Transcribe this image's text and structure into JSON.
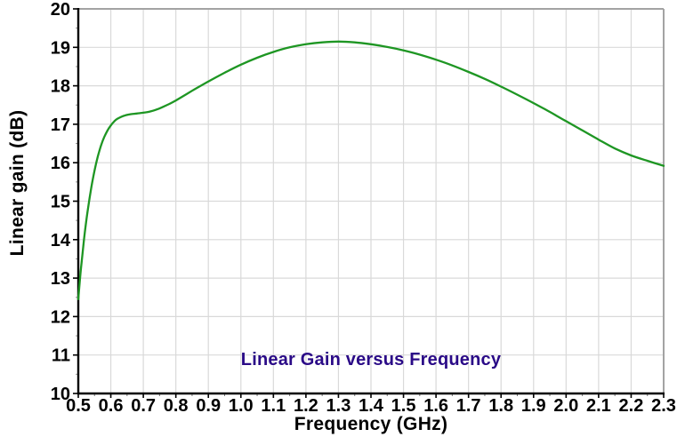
{
  "chart_data": {
    "type": "line",
    "title": "Linear Gain versus Frequency",
    "title_color": "#2a0a87",
    "xlabel": "Frequency (GHz)",
    "ylabel": "Linear gain (dB)",
    "xlim": [
      0.5,
      2.3
    ],
    "ylim": [
      10,
      20
    ],
    "grid": true,
    "grid_color": "#d9d9d9",
    "axis_color": "#000000",
    "frame_color": "#a3a3a3",
    "x_tick_labels": [
      "0.5",
      "0.6",
      "0.7",
      "0.8",
      "0.9",
      "1.0",
      "1.1",
      "1.2",
      "1.3",
      "1.4",
      "1.5",
      "1.6",
      "1.7",
      "1.8",
      "1.9",
      "2.0",
      "2.1",
      "2.2",
      "2.3"
    ],
    "y_tick_labels": [
      "10",
      "11",
      "12",
      "13",
      "14",
      "15",
      "16",
      "17",
      "18",
      "19",
      "20"
    ],
    "x_minor_tick_step": 0.05,
    "y_minor_tick_step": 0.5,
    "legend": "none",
    "series": [
      {
        "name": "Linear gain",
        "color": "#1e9623",
        "x": [
          0.5,
          0.505,
          0.51,
          0.515,
          0.52,
          0.53,
          0.54,
          0.55,
          0.56,
          0.57,
          0.58,
          0.59,
          0.6,
          0.61,
          0.62,
          0.64,
          0.66,
          0.68,
          0.7,
          0.72,
          0.74,
          0.76,
          0.78,
          0.8,
          0.85,
          0.9,
          0.95,
          1.0,
          1.05,
          1.1,
          1.15,
          1.2,
          1.25,
          1.3,
          1.35,
          1.4,
          1.45,
          1.5,
          1.55,
          1.6,
          1.65,
          1.7,
          1.75,
          1.8,
          1.85,
          1.9,
          1.95,
          2.0,
          2.05,
          2.1,
          2.15,
          2.2,
          2.25,
          2.3
        ],
        "y": [
          12.45,
          12.95,
          13.4,
          13.8,
          14.18,
          14.82,
          15.35,
          15.8,
          16.16,
          16.45,
          16.67,
          16.84,
          16.97,
          17.07,
          17.14,
          17.22,
          17.26,
          17.28,
          17.3,
          17.33,
          17.38,
          17.45,
          17.53,
          17.62,
          17.87,
          18.11,
          18.34,
          18.55,
          18.73,
          18.88,
          19.0,
          19.08,
          19.13,
          19.15,
          19.13,
          19.08,
          19.01,
          18.92,
          18.81,
          18.68,
          18.53,
          18.36,
          18.18,
          17.98,
          17.77,
          17.55,
          17.32,
          17.08,
          16.84,
          16.6,
          16.37,
          16.19,
          16.05,
          15.92
        ]
      }
    ]
  }
}
